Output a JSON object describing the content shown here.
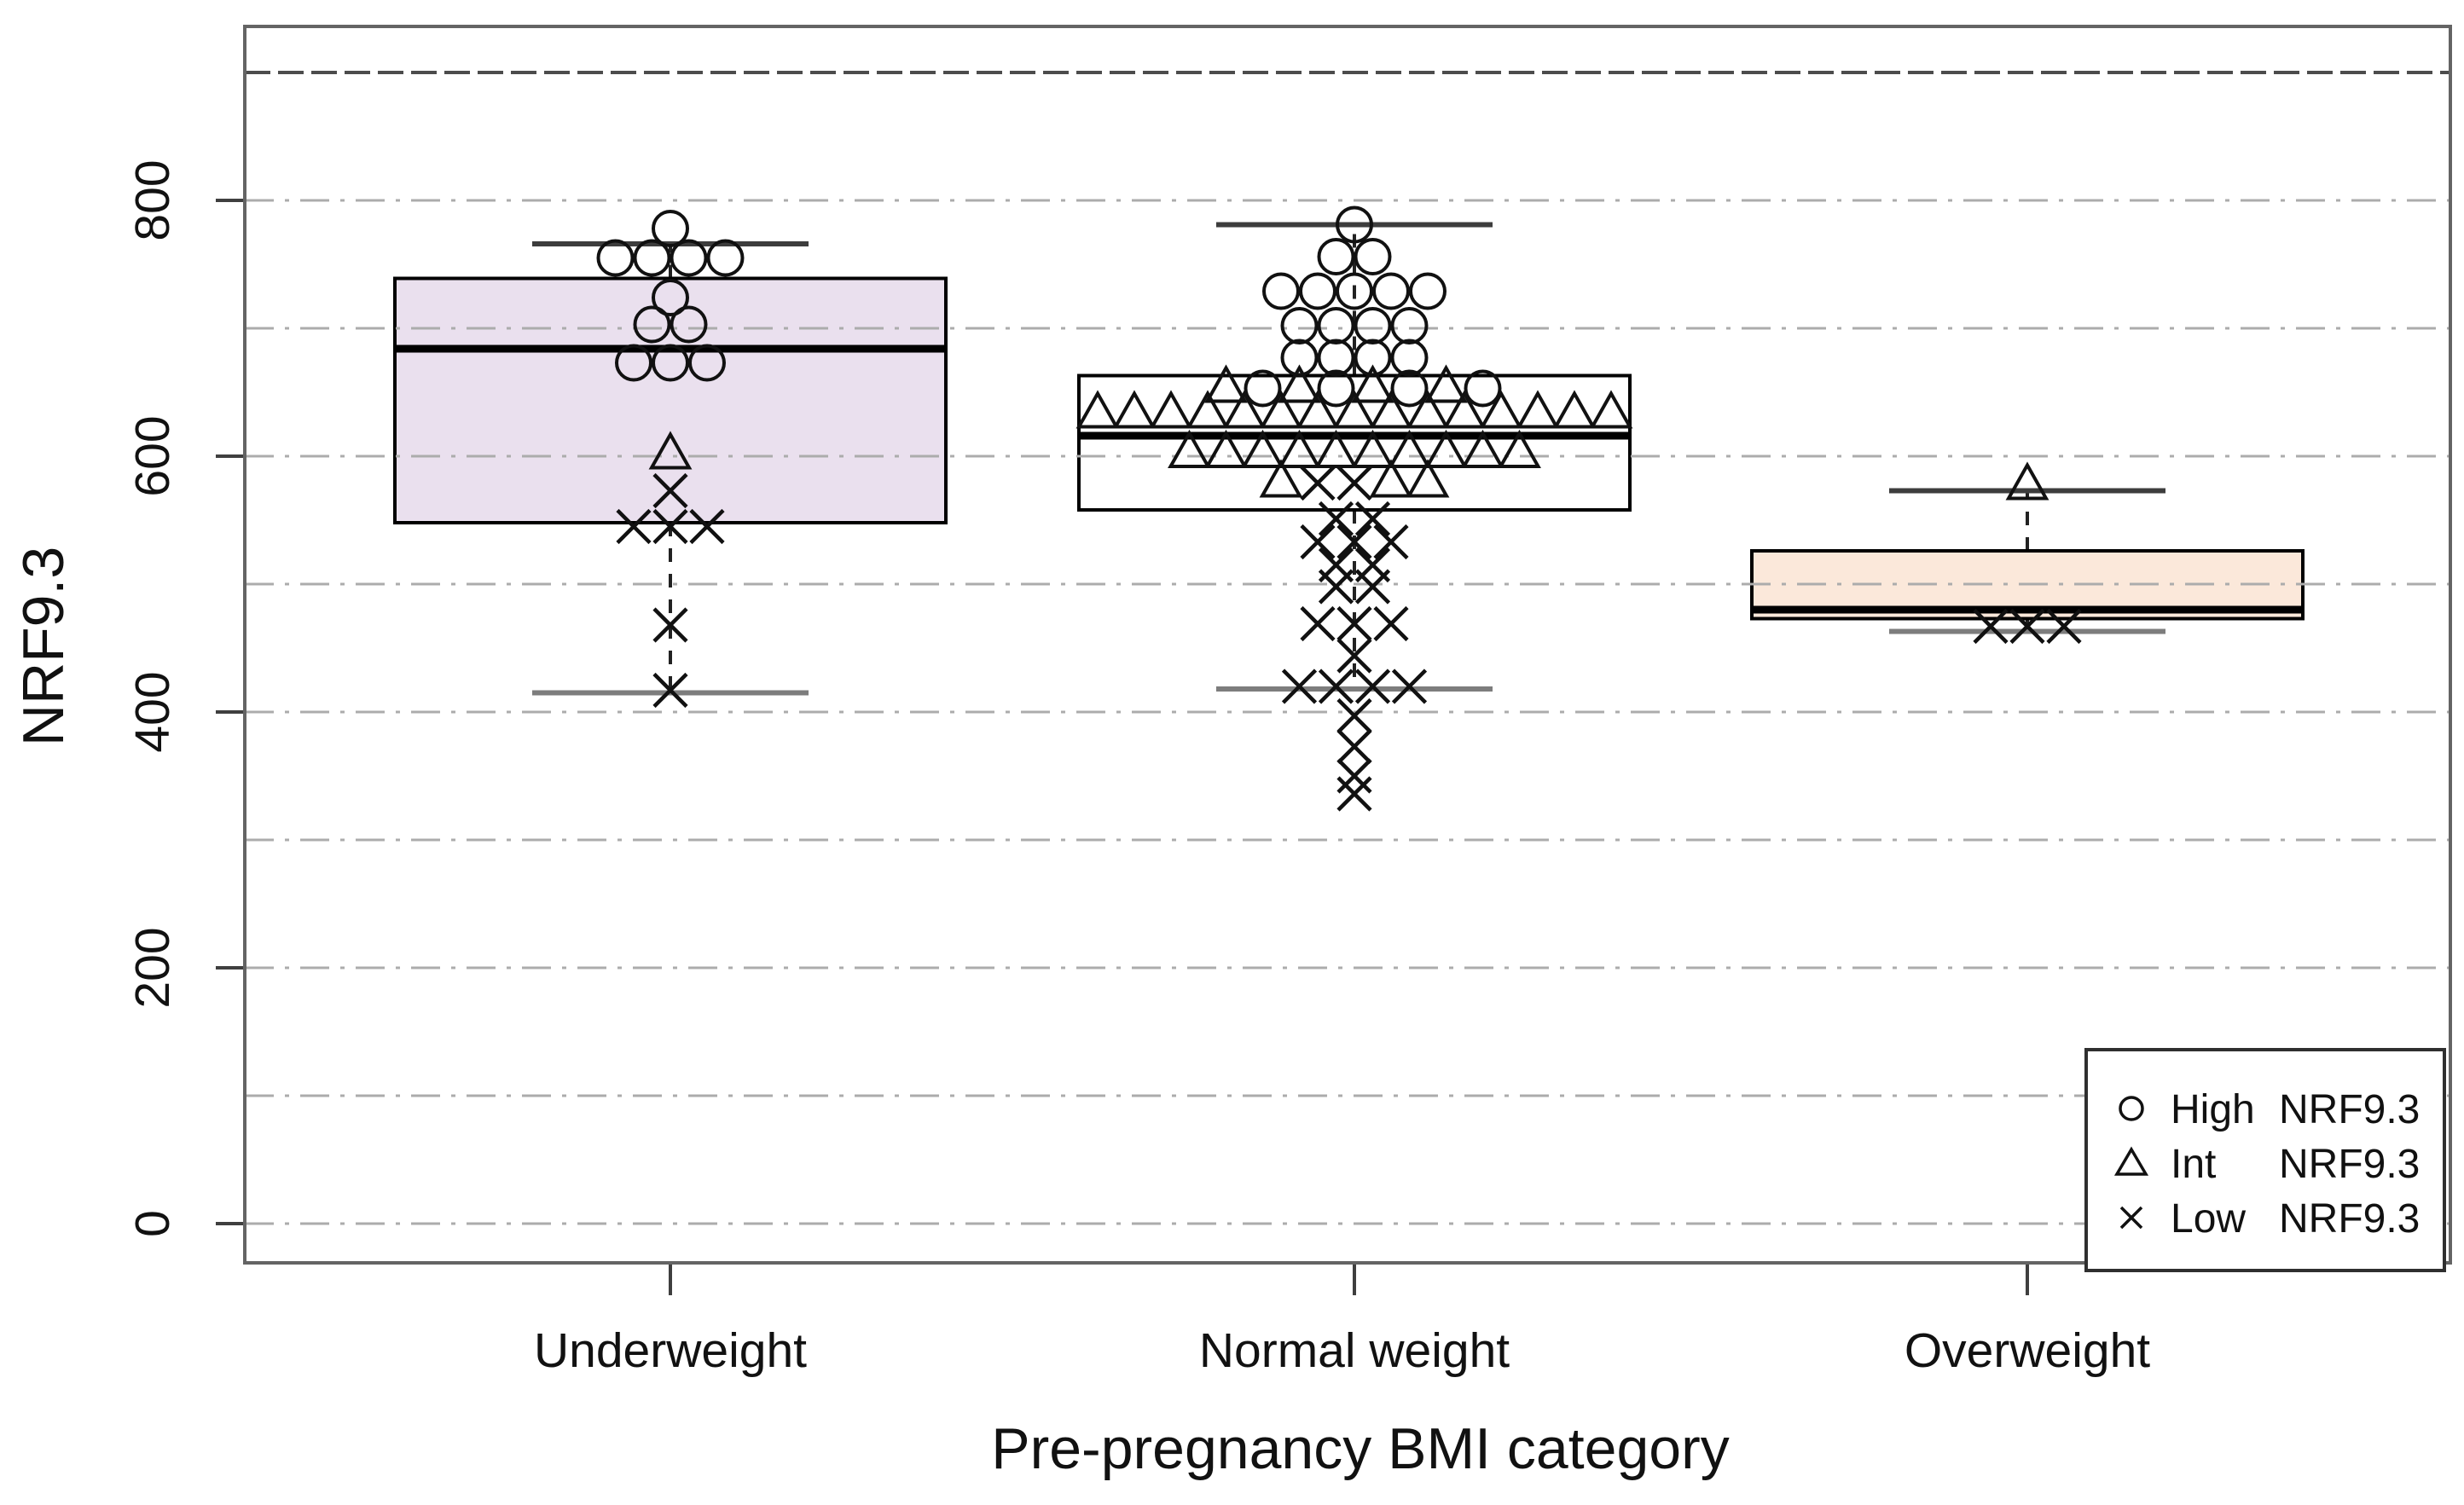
{
  "chart_data": {
    "type": "boxplot",
    "title": "",
    "xlabel": "Pre-pregnancy BMI category",
    "ylabel": "NRF9.3",
    "ylim": [
      0,
      936
    ],
    "yticks": [
      0,
      200,
      400,
      600,
      800
    ],
    "ytick_labels": [
      "0",
      "200",
      "400",
      "600",
      "800"
    ],
    "gridlines": {
      "values": [
        0,
        100,
        200,
        300,
        400,
        500,
        600,
        700,
        800
      ],
      "style": "dash-dot",
      "color": "#acacac"
    },
    "reference_line": {
      "value": 900,
      "style": "dashed",
      "color": "#4c4c4c"
    },
    "categories": [
      "Underweight",
      "Normal weight",
      "Overweight"
    ],
    "groups": [
      {
        "category": "Underweight",
        "box": {
          "whisker_low": 415,
          "q1": 548,
          "median": 684,
          "q3": 739,
          "whisker_high": 766,
          "fill": "#eae0ee"
        },
        "point_rows": [
          {
            "value": 778,
            "markers": [
              "circle"
            ]
          },
          {
            "value": 755,
            "markers": [
              "circle",
              "circle",
              "circle",
              "circle"
            ]
          },
          {
            "value": 724,
            "markers": [
              "circle"
            ]
          },
          {
            "value": 703,
            "markers": [
              "circle",
              "circle"
            ]
          },
          {
            "value": 673,
            "markers": [
              "circle",
              "circle",
              "circle"
            ]
          },
          {
            "value": 601,
            "markers": [
              "triangle"
            ]
          },
          {
            "value": 573,
            "markers": [
              "x"
            ]
          },
          {
            "value": 545,
            "markers": [
              "x",
              "x",
              "x"
            ]
          },
          {
            "value": 468,
            "markers": [
              "x"
            ]
          },
          {
            "value": 417,
            "markers": [
              "x"
            ]
          }
        ]
      },
      {
        "category": "Normal weight",
        "box": {
          "whisker_low": 418,
          "q1": 558,
          "median": 616,
          "q3": 663,
          "whisker_high": 781,
          "fill": "#ffffff"
        },
        "point_rows": [
          {
            "value": 781,
            "markers": [
              "circle"
            ]
          },
          {
            "value": 756,
            "markers": [
              "circle",
              "circle"
            ]
          },
          {
            "value": 729,
            "markers": [
              "circle",
              "circle",
              "circle",
              "circle",
              "circle"
            ]
          },
          {
            "value": 702,
            "markers": [
              "circle",
              "circle",
              "circle",
              "circle"
            ]
          },
          {
            "value": 677,
            "markers": [
              "circle",
              "circle",
              "circle",
              "circle"
            ]
          },
          {
            "value": 653,
            "markers": [
              "triangle",
              "circle",
              "triangle",
              "circle",
              "triangle",
              "circle",
              "triangle",
              "circle"
            ]
          },
          {
            "value": 633,
            "markers": [
              "triangle",
              "triangle",
              "triangle",
              "triangle",
              "triangle",
              "triangle",
              "triangle",
              "triangle",
              "triangle",
              "triangle",
              "triangle",
              "triangle",
              "triangle",
              "triangle",
              "triangle"
            ]
          },
          {
            "value": 602,
            "markers": [
              "triangle",
              "triangle",
              "triangle",
              "triangle",
              "triangle",
              "triangle",
              "triangle",
              "triangle",
              "triangle",
              "triangle"
            ]
          },
          {
            "value": 579,
            "markers": [
              "triangle",
              "x",
              "x",
              "triangle",
              "triangle"
            ]
          },
          {
            "value": 551,
            "markers": [
              "x",
              "x"
            ]
          },
          {
            "value": 533,
            "markers": [
              "x",
              "x",
              "x"
            ]
          },
          {
            "value": 515,
            "markers": [
              "x",
              "x"
            ]
          },
          {
            "value": 498,
            "markers": [
              "x",
              "x"
            ]
          },
          {
            "value": 469,
            "markers": [
              "x",
              "x",
              "x"
            ]
          },
          {
            "value": 444,
            "markers": [
              "x"
            ]
          },
          {
            "value": 420,
            "markers": [
              "x",
              "x",
              "x",
              "x"
            ]
          },
          {
            "value": 397,
            "markers": [
              "x"
            ]
          },
          {
            "value": 373,
            "markers": [
              "x"
            ]
          },
          {
            "value": 350,
            "markers": [
              "x"
            ]
          },
          {
            "value": 336,
            "markers": [
              "x"
            ]
          }
        ]
      },
      {
        "category": "Overweight",
        "box": {
          "whisker_low": 463,
          "q1": 473,
          "median": 480,
          "q3": 526,
          "whisker_high": 573,
          "fill": "#fbe8da"
        },
        "point_rows": [
          {
            "value": 577,
            "markers": [
              "triangle"
            ]
          },
          {
            "value": 467,
            "markers": [
              "x",
              "x",
              "x"
            ]
          }
        ]
      }
    ],
    "legend": {
      "position": "bottom-right",
      "entries": [
        {
          "marker": "circle",
          "label": "High NRF9.3",
          "prefix": "High",
          "suffix": "NRF9.3"
        },
        {
          "marker": "triangle",
          "label": "Int NRF9.3",
          "prefix": "Int",
          "suffix": "NRF9.3"
        },
        {
          "marker": "x",
          "label": "Low NRF9.3",
          "prefix": "Low",
          "suffix": "NRF9.3"
        }
      ]
    }
  },
  "colors": {
    "plot_border": "#646464",
    "tick": "#3f3f3f",
    "marker_stroke": "#111111",
    "median": "#000000",
    "whisker_cap_top": "#3d3d3d",
    "whisker_cap_bottom": "#7d7d7d",
    "whisker_dash": "#222222",
    "gridline": "#acacac",
    "reference_line": "#4c4c4c",
    "legend_border": "#2f2f2f",
    "background": "#ffffff"
  }
}
